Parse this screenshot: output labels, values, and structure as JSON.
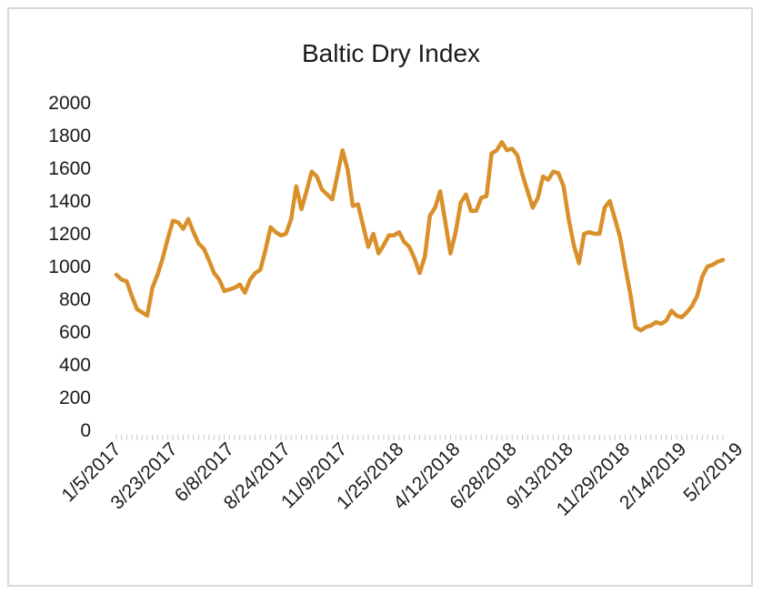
{
  "chart_data": {
    "type": "line",
    "title": "Baltic Dry Index",
    "xlabel": "",
    "ylabel": "",
    "ylim": [
      0,
      2000
    ],
    "yticks": [
      0,
      200,
      400,
      600,
      800,
      1000,
      1200,
      1400,
      1600,
      1800,
      2000
    ],
    "xtick_labels": [
      "1/5/2017",
      "3/23/2017",
      "6/8/2017",
      "8/24/2017",
      "11/9/2017",
      "1/25/2018",
      "4/12/2018",
      "6/28/2018",
      "9/13/2018",
      "11/29/2018",
      "2/14/2019",
      "5/2/2019"
    ],
    "grid": false,
    "legend": "none",
    "series": [
      {
        "color": "#d9902a",
        "values": [
          950,
          920,
          910,
          820,
          740,
          720,
          700,
          870,
          950,
          1050,
          1170,
          1280,
          1270,
          1230,
          1290,
          1210,
          1140,
          1110,
          1040,
          960,
          920,
          850,
          860,
          870,
          890,
          840,
          920,
          960,
          980,
          1100,
          1240,
          1210,
          1190,
          1200,
          1290,
          1490,
          1350,
          1460,
          1580,
          1550,
          1470,
          1440,
          1410,
          1560,
          1710,
          1590,
          1370,
          1380,
          1250,
          1120,
          1200,
          1080,
          1130,
          1190,
          1190,
          1210,
          1150,
          1120,
          1050,
          960,
          1060,
          1310,
          1360,
          1460,
          1270,
          1080,
          1210,
          1390,
          1440,
          1340,
          1340,
          1420,
          1430,
          1690,
          1710,
          1760,
          1710,
          1720,
          1680,
          1560,
          1460,
          1360,
          1420,
          1550,
          1530,
          1580,
          1570,
          1490,
          1290,
          1130,
          1020,
          1200,
          1210,
          1200,
          1200,
          1360,
          1400,
          1290,
          1180,
          1000,
          830,
          630,
          610,
          630,
          640,
          660,
          650,
          670,
          730,
          700,
          690,
          720,
          760,
          820,
          940,
          1000,
          1010,
          1030,
          1040
        ]
      }
    ]
  }
}
